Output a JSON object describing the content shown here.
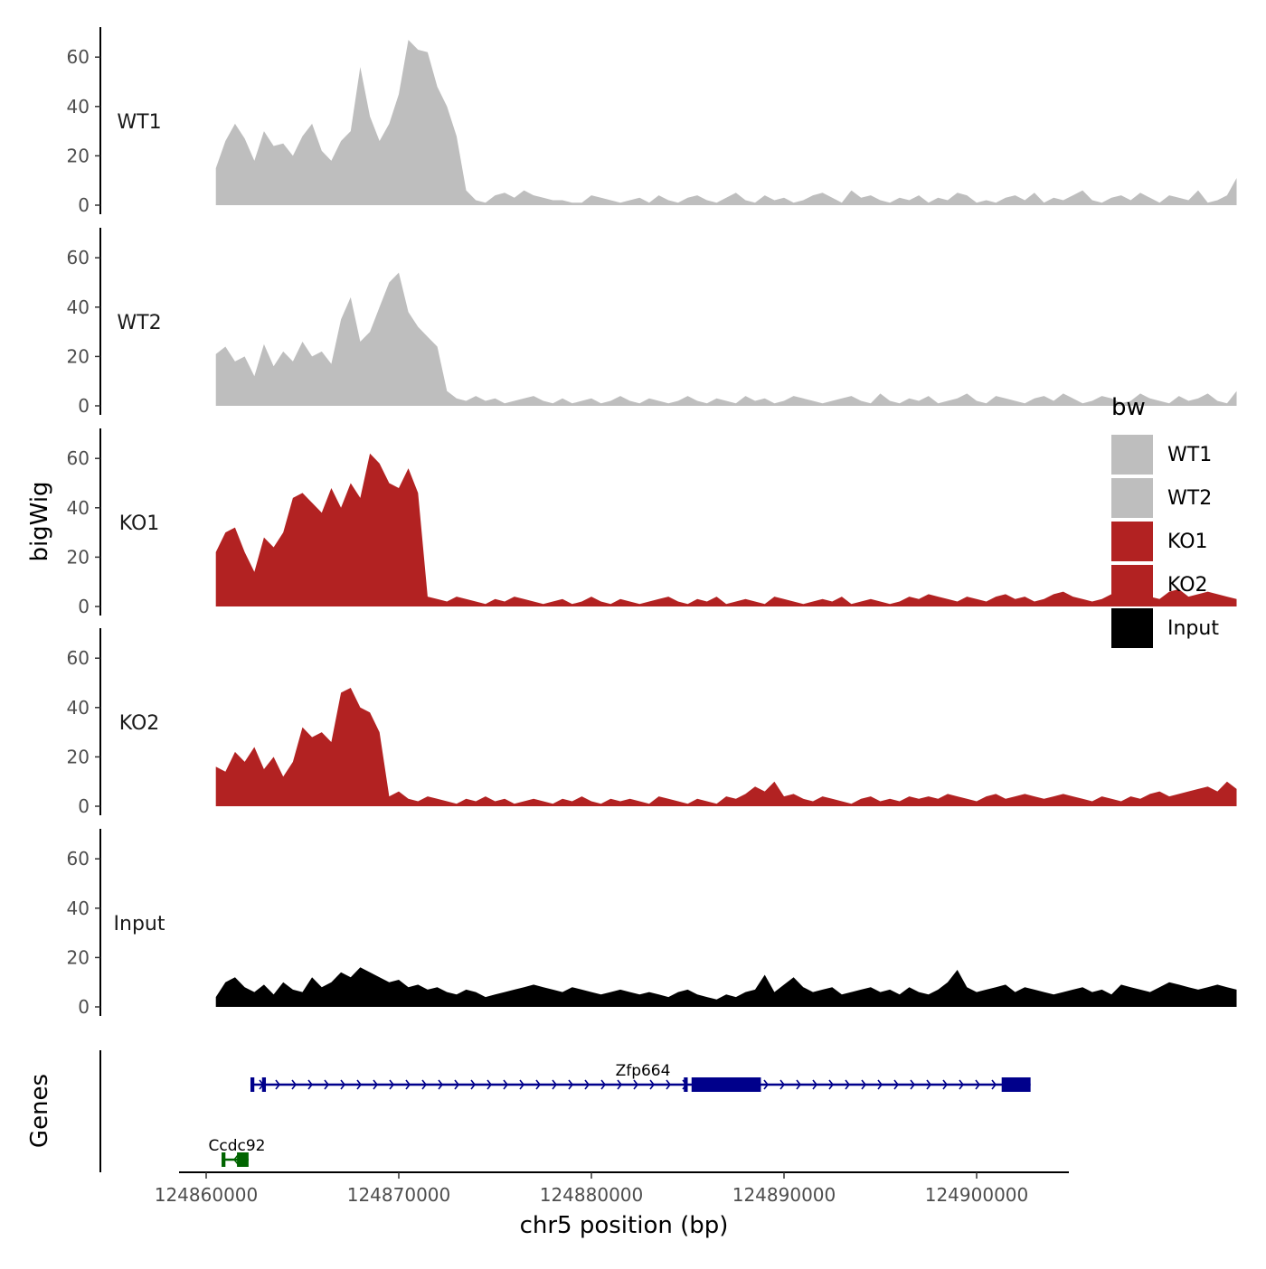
{
  "chart_data": {
    "type": "area",
    "title": "",
    "xlabel": "chr5 position (bp)",
    "ylabel": "bigWig",
    "genes_label": "Genes",
    "xlim": [
      124860000,
      124905000
    ],
    "ylim": [
      0,
      70
    ],
    "x_ticks": [
      124860000,
      124870000,
      124880000,
      124890000,
      124900000
    ],
    "x_tick_labels": [
      "124860000",
      "124870000",
      "124880000",
      "124890000",
      "124900000"
    ],
    "y_ticks": [
      0,
      20,
      40,
      60
    ],
    "y_tick_labels": [
      "0",
      "20",
      "40",
      "60"
    ],
    "legend": {
      "title": "bw",
      "position": "right",
      "entries": [
        {
          "label": "WT1",
          "color": "#BEBEBE"
        },
        {
          "label": "WT2",
          "color": "#BEBEBE"
        },
        {
          "label": "KO1",
          "color": "#B22222"
        },
        {
          "label": "KO2",
          "color": "#B22222"
        },
        {
          "label": "Input",
          "color": "#000000"
        }
      ]
    },
    "series": [
      {
        "name": "WT1",
        "color": "#BEBEBE",
        "bin_size_bp": 500,
        "x_start": 124860500,
        "values": [
          15,
          26,
          33,
          27,
          18,
          30,
          24,
          25,
          20,
          28,
          33,
          22,
          18,
          26,
          30,
          56,
          36,
          26,
          33,
          45,
          67,
          63,
          62,
          48,
          40,
          28,
          6,
          2,
          1,
          4,
          5,
          3,
          6,
          4,
          3,
          2,
          2,
          1,
          1,
          4,
          3,
          2,
          1,
          2,
          3,
          1,
          4,
          2,
          1,
          3,
          4,
          2,
          1,
          3,
          5,
          2,
          1,
          4,
          2,
          3,
          1,
          2,
          4,
          5,
          3,
          1,
          6,
          3,
          4,
          2,
          1,
          3,
          2,
          4,
          1,
          3,
          2,
          5,
          4,
          1,
          2,
          1,
          3,
          4,
          2,
          5,
          1,
          3,
          2,
          4,
          6,
          2,
          1,
          3,
          4,
          2,
          5,
          3,
          1,
          4,
          3,
          2,
          6,
          1,
          2,
          4,
          11
        ]
      },
      {
        "name": "WT2",
        "color": "#BEBEBE",
        "bin_size_bp": 500,
        "x_start": 124860500,
        "values": [
          21,
          24,
          18,
          20,
          12,
          25,
          16,
          22,
          18,
          26,
          20,
          22,
          17,
          35,
          44,
          26,
          30,
          40,
          50,
          54,
          38,
          32,
          28,
          24,
          6,
          3,
          2,
          4,
          2,
          3,
          1,
          2,
          3,
          4,
          2,
          1,
          3,
          1,
          2,
          3,
          1,
          2,
          4,
          2,
          1,
          3,
          2,
          1,
          2,
          4,
          2,
          1,
          3,
          2,
          1,
          4,
          2,
          3,
          1,
          2,
          4,
          3,
          2,
          1,
          2,
          3,
          4,
          2,
          1,
          5,
          2,
          1,
          3,
          2,
          4,
          1,
          2,
          3,
          5,
          2,
          1,
          4,
          3,
          2,
          1,
          3,
          4,
          2,
          5,
          3,
          1,
          2,
          4,
          3,
          1,
          2,
          5,
          3,
          2,
          1,
          4,
          2,
          3,
          5,
          2,
          1,
          6
        ]
      },
      {
        "name": "KO1",
        "color": "#B22222",
        "bin_size_bp": 500,
        "x_start": 124860500,
        "values": [
          22,
          30,
          32,
          22,
          14,
          28,
          24,
          30,
          44,
          46,
          42,
          38,
          48,
          40,
          50,
          44,
          62,
          58,
          50,
          48,
          56,
          46,
          4,
          3,
          2,
          4,
          3,
          2,
          1,
          3,
          2,
          4,
          3,
          2,
          1,
          2,
          3,
          1,
          2,
          4,
          2,
          1,
          3,
          2,
          1,
          2,
          3,
          4,
          2,
          1,
          3,
          2,
          4,
          1,
          2,
          3,
          2,
          1,
          4,
          3,
          2,
          1,
          2,
          3,
          2,
          4,
          1,
          2,
          3,
          2,
          1,
          2,
          4,
          3,
          5,
          4,
          3,
          2,
          4,
          3,
          2,
          4,
          5,
          3,
          4,
          2,
          3,
          5,
          6,
          4,
          3,
          2,
          3,
          5,
          4,
          3,
          5,
          4,
          3,
          6,
          7,
          4,
          5,
          6,
          5,
          4,
          3
        ]
      },
      {
        "name": "KO2",
        "color": "#B22222",
        "bin_size_bp": 500,
        "x_start": 124860500,
        "values": [
          16,
          14,
          22,
          18,
          24,
          15,
          20,
          12,
          18,
          32,
          28,
          30,
          26,
          46,
          48,
          40,
          38,
          30,
          4,
          6,
          3,
          2,
          4,
          3,
          2,
          1,
          3,
          2,
          4,
          2,
          3,
          1,
          2,
          3,
          2,
          1,
          3,
          2,
          4,
          2,
          1,
          3,
          2,
          3,
          2,
          1,
          4,
          3,
          2,
          1,
          3,
          2,
          1,
          4,
          3,
          5,
          8,
          6,
          10,
          4,
          5,
          3,
          2,
          4,
          3,
          2,
          1,
          3,
          4,
          2,
          3,
          2,
          4,
          3,
          4,
          3,
          5,
          4,
          3,
          2,
          4,
          5,
          3,
          4,
          5,
          4,
          3,
          4,
          5,
          4,
          3,
          2,
          4,
          3,
          2,
          4,
          3,
          5,
          6,
          4,
          5,
          6,
          7,
          8,
          6,
          10,
          7
        ]
      },
      {
        "name": "Input",
        "color": "#000000",
        "bin_size_bp": 500,
        "x_start": 124860500,
        "values": [
          4,
          10,
          12,
          8,
          6,
          9,
          5,
          10,
          7,
          6,
          12,
          8,
          10,
          14,
          12,
          16,
          14,
          12,
          10,
          11,
          8,
          9,
          7,
          8,
          6,
          5,
          7,
          6,
          4,
          5,
          6,
          7,
          8,
          9,
          8,
          7,
          6,
          8,
          7,
          6,
          5,
          6,
          7,
          6,
          5,
          6,
          5,
          4,
          6,
          7,
          5,
          4,
          3,
          5,
          4,
          6,
          7,
          13,
          6,
          9,
          12,
          8,
          6,
          7,
          8,
          5,
          6,
          7,
          8,
          6,
          7,
          5,
          8,
          6,
          5,
          7,
          10,
          15,
          8,
          6,
          7,
          8,
          9,
          6,
          8,
          7,
          6,
          5,
          6,
          7,
          8,
          6,
          7,
          5,
          9,
          8,
          7,
          6,
          8,
          10,
          9,
          8,
          7,
          8,
          9,
          8,
          7
        ]
      }
    ],
    "genes": [
      {
        "name": "Zfp664",
        "strand": "+",
        "color": "#00008B",
        "start": 124862300,
        "end": 124902800,
        "exons": [
          [
            124862300,
            124862500
          ],
          [
            124862900,
            124863100
          ],
          [
            124884800,
            124885000
          ],
          [
            124885200,
            124888800
          ],
          [
            124901300,
            124902800
          ]
        ]
      },
      {
        "name": "Ccdc92",
        "strand": "-",
        "color": "#006400",
        "start": 124860800,
        "end": 124862200,
        "exons": [
          [
            124860800,
            124861000
          ],
          [
            124861600,
            124862200
          ]
        ]
      }
    ]
  }
}
